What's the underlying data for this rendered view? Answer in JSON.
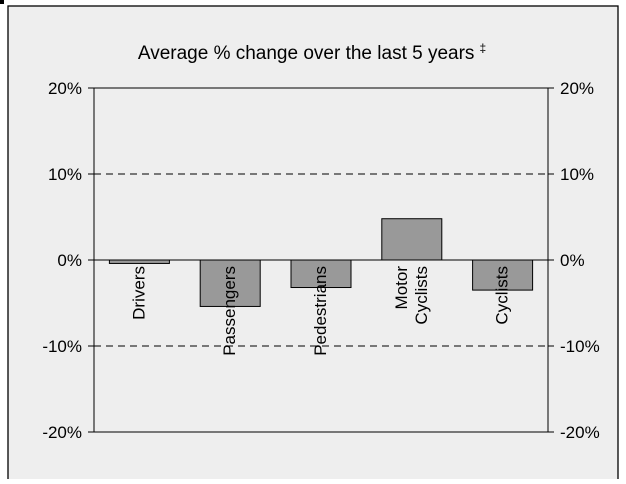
{
  "chart_data": {
    "type": "bar",
    "title": "Average % change over the last 5 years",
    "title_marker": "‡",
    "categories": [
      "Drivers",
      "Passengers",
      "Pedestrians",
      "Motor Cyclists",
      "Cyclists"
    ],
    "category_lines": [
      [
        "Drivers"
      ],
      [
        "Passengers"
      ],
      [
        "Pedestrians"
      ],
      [
        "Motor",
        "Cyclists"
      ],
      [
        "Cyclists"
      ]
    ],
    "values": [
      -0.4,
      -5.4,
      -3.2,
      4.8,
      -3.5
    ],
    "ylim": [
      -20,
      20
    ],
    "yticks": [
      -20,
      -10,
      0,
      10,
      20
    ],
    "ytick_labels": [
      "-20%",
      "-10%",
      "0%",
      "10%",
      "20%"
    ],
    "xlabel": "",
    "ylabel": "",
    "grid": "dashed at ±10%",
    "bar_color": "#999999",
    "background_color": "#eeeeee"
  }
}
